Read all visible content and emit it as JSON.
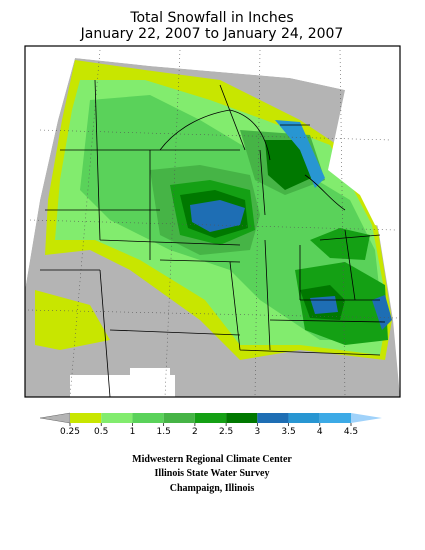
{
  "header": {
    "title": "Total Snowfall in Inches",
    "subtitle": "January 22, 2007 to January 24, 2007"
  },
  "legend": {
    "values": [
      0.25,
      0.5,
      1,
      1.5,
      2,
      2.5,
      3,
      3.5,
      4,
      4.5
    ],
    "colors": [
      "#b4b4b4",
      "#c8e600",
      "#82ec6e",
      "#5ad25a",
      "#46b446",
      "#14a014",
      "#007800",
      "#1e6eb4",
      "#2896d2",
      "#3caae6",
      "#a0d2fa"
    ]
  },
  "credits": [
    "Midwestern Regional Climate Center",
    "Illinois State Water Survey",
    "Champaign, Illinois"
  ]
}
